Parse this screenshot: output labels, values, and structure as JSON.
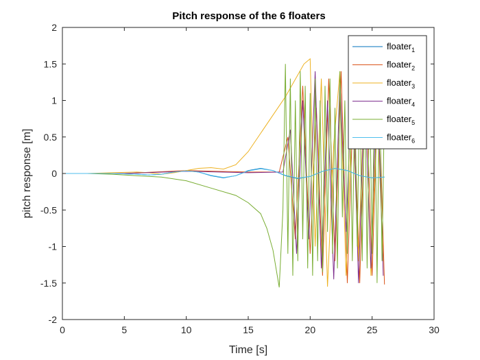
{
  "chart_data": {
    "type": "line",
    "title": "Pitch response of the 6 floaters",
    "xlabel": "Time [s]",
    "ylabel": "pitch response [m]",
    "xlim": [
      0,
      30
    ],
    "ylim": [
      -2,
      2
    ],
    "xticks": [
      0,
      5,
      10,
      15,
      20,
      25,
      30
    ],
    "yticks": [
      -2,
      -1.5,
      -1,
      -0.5,
      0,
      0.5,
      1,
      1.5,
      2
    ],
    "grid": false,
    "legend_placement": "top-right",
    "legend": [
      {
        "base": "floater",
        "sub": "1",
        "color": "#0072BD"
      },
      {
        "base": "floater",
        "sub": "2",
        "color": "#D95319"
      },
      {
        "base": "floater",
        "sub": "3",
        "color": "#EDB120"
      },
      {
        "base": "floater",
        "sub": "4",
        "color": "#7E2F8E"
      },
      {
        "base": "floater",
        "sub": "5",
        "color": "#77AC30"
      },
      {
        "base": "floater",
        "sub": "6",
        "color": "#4DBEEE"
      }
    ],
    "series": [
      {
        "name": "floater_1",
        "color": "#0072BD",
        "x": [
          0,
          2,
          4,
          6,
          7,
          8,
          9,
          10,
          11,
          12,
          13,
          14,
          15,
          16,
          17,
          18,
          19,
          20,
          21,
          22,
          23,
          24,
          25,
          26
        ],
        "y": [
          0,
          0,
          0,
          -0.01,
          -0.02,
          -0.01,
          0.02,
          0.04,
          0.02,
          -0.03,
          -0.06,
          -0.03,
          0.04,
          0.07,
          0.04,
          -0.03,
          -0.07,
          -0.04,
          0.03,
          0.07,
          0.04,
          -0.03,
          -0.06,
          -0.05
        ]
      },
      {
        "name": "floater_2",
        "color": "#D95319",
        "x": [
          0,
          5,
          10,
          15,
          17.5,
          18.2,
          18.8,
          19.4,
          20,
          20.5,
          21,
          21.5,
          22,
          22.5,
          23,
          23.5,
          24,
          24.5,
          25,
          25.5,
          26
        ],
        "y": [
          0,
          0,
          0.04,
          0.02,
          0.02,
          0.5,
          -0.9,
          1.2,
          -1.1,
          0.9,
          -1.4,
          1.3,
          -1.2,
          1.4,
          -1.5,
          1.1,
          -1.5,
          1.3,
          -1.4,
          1.4,
          -1.52
        ]
      },
      {
        "name": "floater_3",
        "color": "#EDB120",
        "x": [
          0,
          2,
          4,
          6,
          7,
          8,
          9,
          10,
          11,
          12,
          13,
          14,
          15,
          16,
          17,
          18,
          19,
          19.5,
          20,
          20.4,
          20.9,
          21.4,
          21.9,
          22.4,
          22.9,
          23.4,
          23.9,
          24.4,
          24.9,
          25.4,
          25.9
        ],
        "y": [
          0,
          0,
          0.01,
          0.02,
          0.01,
          -0.01,
          0.01,
          0.04,
          0.07,
          0.08,
          0.06,
          0.12,
          0.3,
          0.55,
          0.8,
          1.05,
          1.35,
          1.5,
          1.57,
          -1.0,
          1.3,
          -1.55,
          0.4,
          1.4,
          -1.4,
          1.0,
          -1.2,
          1.3,
          -1.4,
          0.9,
          -1.2
        ]
      },
      {
        "name": "floater_4",
        "color": "#7E2F8E",
        "x": [
          0,
          5,
          10,
          15,
          17.8,
          18.4,
          18.9,
          19.4,
          19.9,
          20.4,
          20.9,
          21.4,
          21.9,
          22.4,
          22.9,
          23.4,
          23.9,
          24.4,
          24.9,
          25.4,
          25.9
        ],
        "y": [
          0,
          0,
          0.03,
          0.01,
          0.02,
          0.6,
          -1.1,
          1.0,
          -0.9,
          1.4,
          -1.3,
          1.0,
          -1.45,
          1.3,
          -0.8,
          1.45,
          -1.5,
          1.2,
          -1.3,
          1.4,
          -1.4
        ]
      },
      {
        "name": "floater_5",
        "color": "#77AC30",
        "x": [
          0,
          2,
          4,
          6,
          8,
          10,
          12,
          14,
          15,
          16,
          16.5,
          17,
          17.5,
          17.8,
          18.0,
          18.2,
          18.4,
          18.6,
          18.8,
          19.0,
          19.2,
          19.4,
          19.6,
          19.8,
          20.0,
          20.2,
          20.4,
          20.6,
          20.8,
          21.0,
          21.2,
          21.4,
          21.6,
          21.8,
          22.0,
          22.2,
          22.4,
          22.6,
          22.8,
          23.0,
          23.2,
          23.4,
          23.6,
          23.8,
          24.0,
          24.2,
          24.4,
          24.6,
          24.8,
          25.0,
          25.2,
          25.4,
          25.6,
          25.8,
          26.0
        ],
        "y": [
          0,
          0,
          -0.01,
          -0.03,
          -0.05,
          -0.1,
          -0.2,
          -0.3,
          -0.4,
          -0.55,
          -0.75,
          -1.05,
          -1.56,
          -0.5,
          1.5,
          -1.1,
          1.3,
          -1.4,
          1.0,
          -1.2,
          1.4,
          -0.9,
          1.2,
          -1.3,
          1.1,
          -1.4,
          1.3,
          -1.2,
          1.0,
          -1.35,
          1.2,
          -0.8,
          1.3,
          -1.1,
          0.9,
          -1.3,
          1.4,
          -0.6,
          1.0,
          -1.1,
          1.2,
          -1.2,
          1.1,
          -1.0,
          1.3,
          -1.2,
          1.3,
          -1.3,
          1.2,
          -1.1,
          1.3,
          -1.5,
          1.4,
          -1.2,
          1.0
        ]
      },
      {
        "name": "floater_6",
        "color": "#4DBEEE",
        "x": [
          0,
          2,
          4,
          6,
          7,
          8,
          9,
          10,
          11,
          12,
          13,
          14,
          15,
          16,
          17,
          18,
          19,
          20,
          21,
          22,
          23,
          24,
          25,
          26
        ],
        "y": [
          0,
          0,
          0,
          -0.01,
          -0.02,
          -0.01,
          0.02,
          0.035,
          0.02,
          -0.025,
          -0.055,
          -0.03,
          0.035,
          0.065,
          0.04,
          -0.025,
          -0.065,
          -0.04,
          0.03,
          0.07,
          0.04,
          -0.03,
          -0.06,
          -0.05
        ]
      }
    ]
  }
}
